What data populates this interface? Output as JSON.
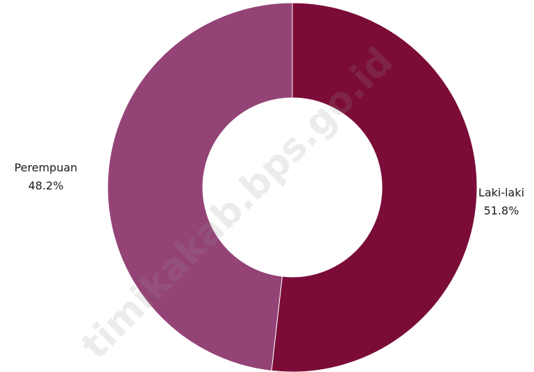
{
  "chart_data": {
    "type": "pie",
    "variant": "donut",
    "slices": [
      {
        "name": "Laki-laki",
        "value": 51.8,
        "display": "51.8%",
        "color": "#7b0c38"
      },
      {
        "name": "Perempuan",
        "value": 48.2,
        "display": "48.2%",
        "color": "#944377"
      }
    ]
  },
  "watermark": "timikakab.bps.go.id"
}
